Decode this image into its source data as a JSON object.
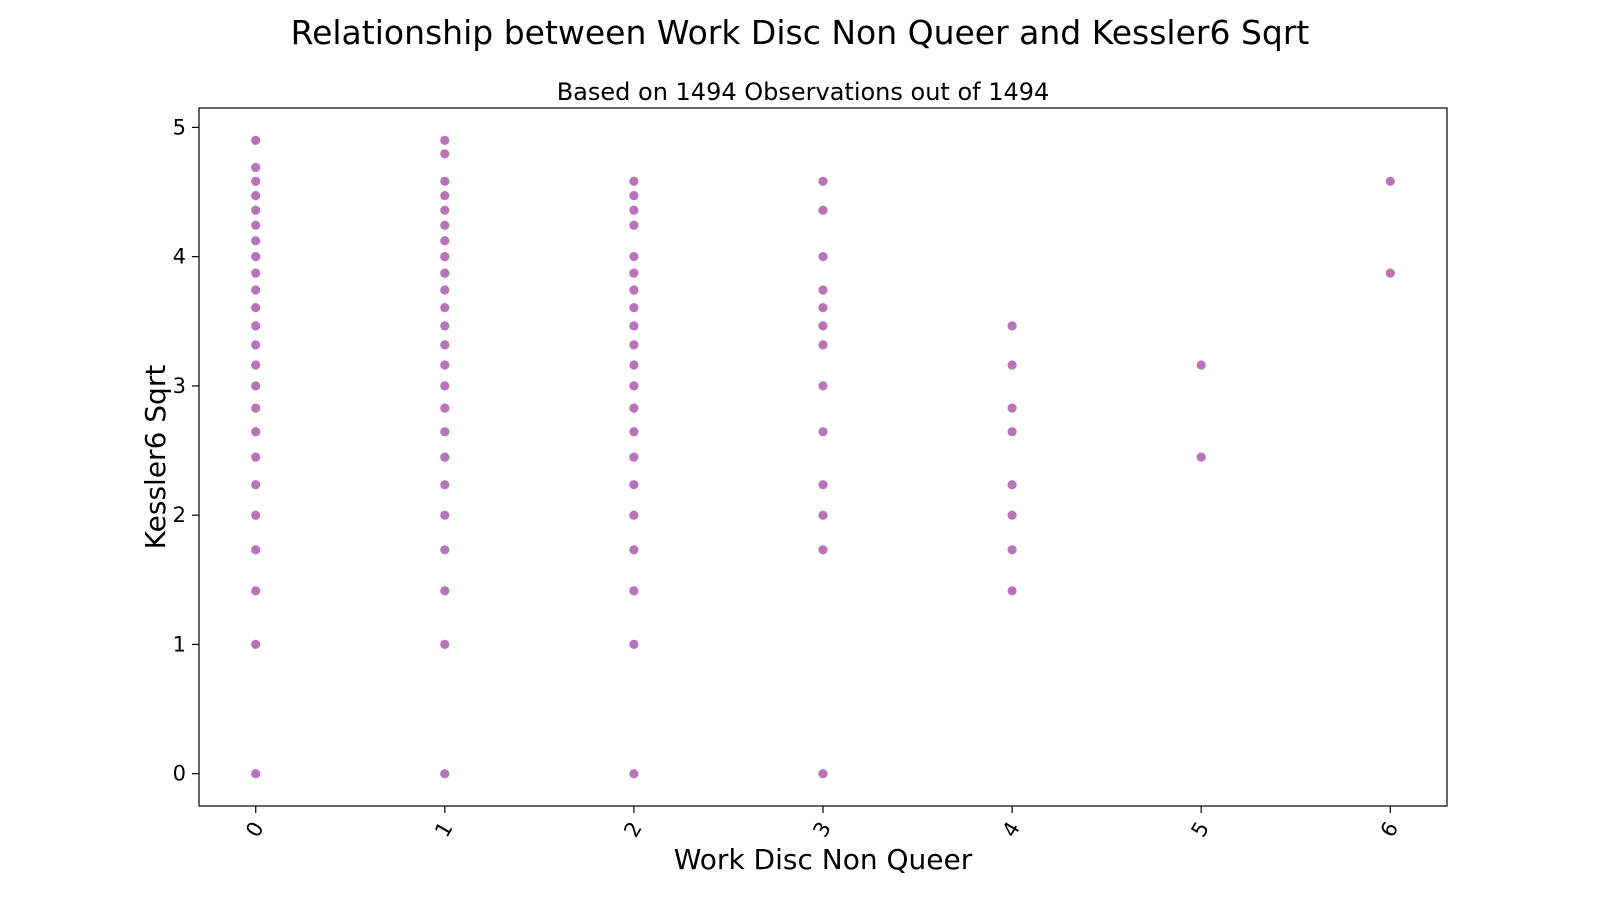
{
  "chart_data": {
    "type": "scatter",
    "title": "Relationship between Work Disc Non Queer and Kessler6 Sqrt",
    "subtitle": "Based on 1494 Observations out of 1494",
    "xlabel": "Work Disc Non Queer",
    "ylabel": "Kessler6 Sqrt",
    "xlim": [
      -0.3,
      6.3
    ],
    "ylim": [
      -0.25,
      5.15
    ],
    "xticks": [
      "0",
      "1",
      "2",
      "3",
      "4",
      "5",
      "6"
    ],
    "yticks": [
      "0",
      "1",
      "2",
      "3",
      "4",
      "5"
    ],
    "grid": false,
    "marker_color": "#800080",
    "series": [
      {
        "points": [
          [
            0,
            0
          ],
          [
            0,
            1
          ],
          [
            0,
            1.414
          ],
          [
            0,
            1.732
          ],
          [
            0,
            2
          ],
          [
            0,
            2.236
          ],
          [
            0,
            2.449
          ],
          [
            0,
            2.646
          ],
          [
            0,
            2.828
          ],
          [
            0,
            3
          ],
          [
            0,
            3.162
          ],
          [
            0,
            3.317
          ],
          [
            0,
            3.464
          ],
          [
            0,
            3.606
          ],
          [
            0,
            3.742
          ],
          [
            0,
            3.873
          ],
          [
            0,
            4
          ],
          [
            0,
            4.123
          ],
          [
            0,
            4.243
          ],
          [
            0,
            4.359
          ],
          [
            0,
            4.472
          ],
          [
            0,
            4.583
          ],
          [
            0,
            4.69
          ],
          [
            0,
            4.899
          ],
          [
            1,
            0
          ],
          [
            1,
            1
          ],
          [
            1,
            1.414
          ],
          [
            1,
            1.732
          ],
          [
            1,
            2
          ],
          [
            1,
            2.236
          ],
          [
            1,
            2.449
          ],
          [
            1,
            2.646
          ],
          [
            1,
            2.828
          ],
          [
            1,
            3
          ],
          [
            1,
            3.162
          ],
          [
            1,
            3.317
          ],
          [
            1,
            3.464
          ],
          [
            1,
            3.606
          ],
          [
            1,
            3.742
          ],
          [
            1,
            3.873
          ],
          [
            1,
            4
          ],
          [
            1,
            4.123
          ],
          [
            1,
            4.243
          ],
          [
            1,
            4.359
          ],
          [
            1,
            4.472
          ],
          [
            1,
            4.583
          ],
          [
            1,
            4.796
          ],
          [
            1,
            4.899
          ],
          [
            2,
            0
          ],
          [
            2,
            1
          ],
          [
            2,
            1.414
          ],
          [
            2,
            1.732
          ],
          [
            2,
            2
          ],
          [
            2,
            2.236
          ],
          [
            2,
            2.449
          ],
          [
            2,
            2.646
          ],
          [
            2,
            2.828
          ],
          [
            2,
            3
          ],
          [
            2,
            3.162
          ],
          [
            2,
            3.317
          ],
          [
            2,
            3.464
          ],
          [
            2,
            3.606
          ],
          [
            2,
            3.742
          ],
          [
            2,
            3.873
          ],
          [
            2,
            4
          ],
          [
            2,
            4.243
          ],
          [
            2,
            4.359
          ],
          [
            2,
            4.472
          ],
          [
            2,
            4.583
          ],
          [
            3,
            0
          ],
          [
            3,
            1.732
          ],
          [
            3,
            2
          ],
          [
            3,
            2.236
          ],
          [
            3,
            2.646
          ],
          [
            3,
            3
          ],
          [
            3,
            3.317
          ],
          [
            3,
            3.464
          ],
          [
            3,
            3.606
          ],
          [
            3,
            3.742
          ],
          [
            3,
            4
          ],
          [
            3,
            4.359
          ],
          [
            3,
            4.583
          ],
          [
            4,
            1.414
          ],
          [
            4,
            1.732
          ],
          [
            4,
            2
          ],
          [
            4,
            2.236
          ],
          [
            4,
            2.646
          ],
          [
            4,
            2.828
          ],
          [
            4,
            3.162
          ],
          [
            4,
            3.464
          ],
          [
            5,
            2.449
          ],
          [
            5,
            3.162
          ],
          [
            6,
            3.873
          ],
          [
            6,
            4.583
          ]
        ]
      }
    ]
  }
}
